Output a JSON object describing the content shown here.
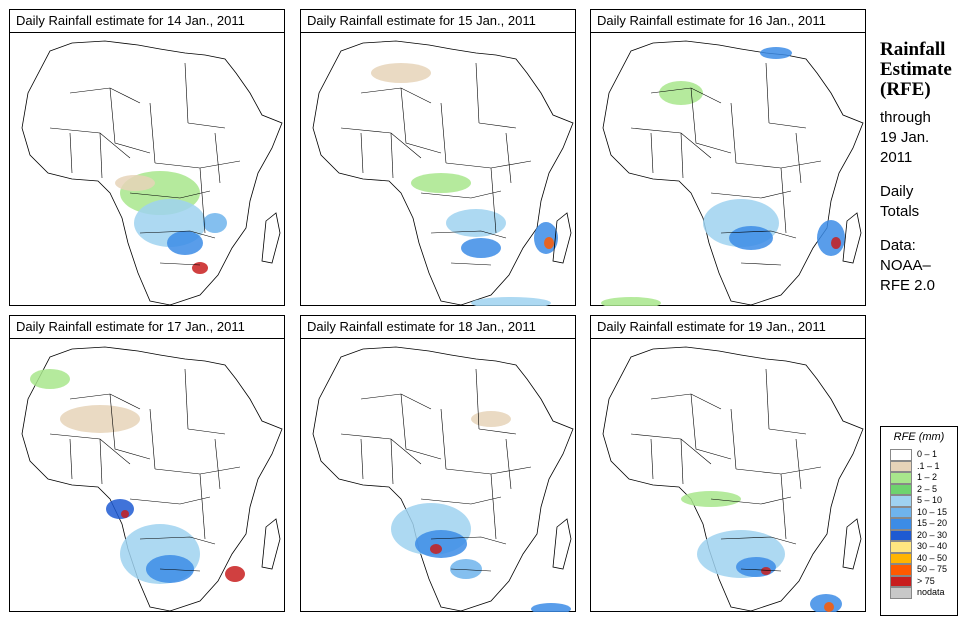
{
  "panels": [
    {
      "title": "Daily Rainfall estimate for  14 Jan., 2011",
      "date": "14 Jan., 2011"
    },
    {
      "title": "Daily Rainfall estimate for  15 Jan., 2011",
      "date": "15 Jan., 2011"
    },
    {
      "title": "Daily Rainfall estimate for  16 Jan., 2011",
      "date": "16 Jan., 2011"
    },
    {
      "title": "Daily Rainfall estimate for  17 Jan., 2011",
      "date": "17 Jan., 2011"
    },
    {
      "title": "Daily Rainfall estimate for  18 Jan., 2011",
      "date": "18 Jan., 2011"
    },
    {
      "title": "Daily Rainfall estimate for  19 Jan., 2011",
      "date": "19 Jan., 2011"
    }
  ],
  "side": {
    "title_line1": "Rainfall",
    "title_line2": "Estimate",
    "title_line3": "(RFE)",
    "through_line1": "through",
    "through_line2": "19 Jan.",
    "through_line3": "2011",
    "daily_line1": "Daily",
    "daily_line2": "Totals",
    "data_line1": "Data:",
    "data_line2": "NOAA–",
    "data_line3": "RFE 2.0"
  },
  "legend": {
    "title": "RFE (mm)",
    "items": [
      {
        "label": "0 – 1",
        "color": "#ffffff"
      },
      {
        "label": ".1 – 1",
        "color": "#e6d3b8"
      },
      {
        "label": "1 – 2",
        "color": "#a8e68c"
      },
      {
        "label": "2 – 5",
        "color": "#6ed36e"
      },
      {
        "label": "5 – 10",
        "color": "#9fd2f0"
      },
      {
        "label": "10 – 15",
        "color": "#6fb4ec"
      },
      {
        "label": "15 – 20",
        "color": "#3c8ce6"
      },
      {
        "label": "20 – 30",
        "color": "#1e5ad2"
      },
      {
        "label": "30 – 40",
        "color": "#ffe680"
      },
      {
        "label": "40 – 50",
        "color": "#ffb400"
      },
      {
        "label": "50 – 75",
        "color": "#ff5a00"
      },
      {
        "label": "> 75",
        "color": "#c81e1e"
      },
      {
        "label": "nodata",
        "color": "#c8c8c8"
      }
    ]
  }
}
